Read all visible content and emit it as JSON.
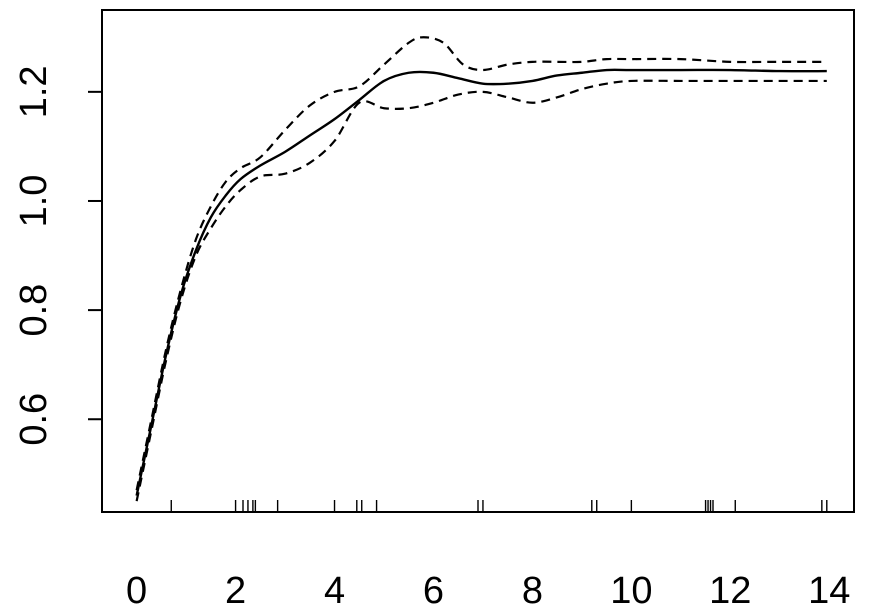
{
  "chart_data": {
    "type": "line",
    "title": "",
    "xlabel": "",
    "ylabel": "",
    "xlim": [
      -0.7,
      14.5
    ],
    "ylim": [
      0.43,
      1.35
    ],
    "x_ticks": [
      0,
      2,
      4,
      6,
      8,
      10,
      12,
      14
    ],
    "x_tick_labels": [
      "0",
      "2",
      "4",
      "6",
      "8",
      "10",
      "12",
      "14"
    ],
    "y_ticks": [
      0.6,
      0.8,
      1.0,
      1.2
    ],
    "y_tick_labels": [
      "0.6",
      "0.8",
      "1.0",
      "1.2"
    ],
    "grid": false,
    "legend": "none",
    "rug": [
      0.7,
      2.0,
      2.15,
      2.25,
      2.35,
      2.4,
      2.85,
      4.0,
      4.45,
      4.55,
      4.85,
      6.9,
      7.0,
      9.2,
      9.3,
      10.0,
      11.5,
      11.55,
      11.6,
      11.65,
      12.1,
      13.85,
      13.95
    ],
    "series": [
      {
        "style": "solid",
        "x": [
          0.0,
          0.3,
          0.6,
          0.9,
          1.2,
          1.5,
          1.8,
          2.1,
          2.5,
          3.0,
          3.5,
          4.0,
          4.5,
          5.0,
          5.5,
          6.0,
          6.5,
          7.0,
          7.5,
          8.0,
          8.5,
          9.0,
          9.5,
          10.0,
          11.0,
          12.0,
          13.0,
          13.95
        ],
        "y": [
          0.46,
          0.59,
          0.72,
          0.83,
          0.91,
          0.97,
          1.01,
          1.04,
          1.065,
          1.09,
          1.12,
          1.15,
          1.185,
          1.22,
          1.235,
          1.235,
          1.225,
          1.215,
          1.215,
          1.22,
          1.23,
          1.235,
          1.24,
          1.24,
          1.24,
          1.24,
          1.238,
          1.238
        ]
      },
      {
        "style": "dashed",
        "x": [
          0.0,
          0.3,
          0.6,
          0.9,
          1.2,
          1.5,
          1.8,
          2.1,
          2.5,
          3.0,
          3.5,
          4.0,
          4.5,
          5.0,
          5.5,
          5.8,
          6.2,
          6.6,
          7.0,
          7.5,
          8.0,
          8.5,
          9.0,
          9.5,
          10.0,
          11.0,
          12.0,
          13.0,
          13.95
        ],
        "y": [
          0.47,
          0.6,
          0.73,
          0.84,
          0.93,
          0.99,
          1.035,
          1.06,
          1.08,
          1.13,
          1.175,
          1.2,
          1.21,
          1.25,
          1.29,
          1.3,
          1.29,
          1.25,
          1.24,
          1.25,
          1.255,
          1.255,
          1.255,
          1.26,
          1.26,
          1.26,
          1.255,
          1.255,
          1.255
        ]
      },
      {
        "style": "dashed",
        "x": [
          0.0,
          0.3,
          0.6,
          0.9,
          1.2,
          1.5,
          1.8,
          2.1,
          2.5,
          3.0,
          3.5,
          4.0,
          4.5,
          5.0,
          5.5,
          6.0,
          6.5,
          7.0,
          7.5,
          8.0,
          8.5,
          9.0,
          9.5,
          10.0,
          11.0,
          12.0,
          13.0,
          13.95
        ],
        "y": [
          0.45,
          0.58,
          0.71,
          0.82,
          0.9,
          0.95,
          0.99,
          1.02,
          1.045,
          1.05,
          1.07,
          1.11,
          1.18,
          1.17,
          1.17,
          1.18,
          1.195,
          1.2,
          1.19,
          1.18,
          1.19,
          1.205,
          1.215,
          1.22,
          1.22,
          1.22,
          1.22,
          1.22
        ]
      }
    ]
  }
}
